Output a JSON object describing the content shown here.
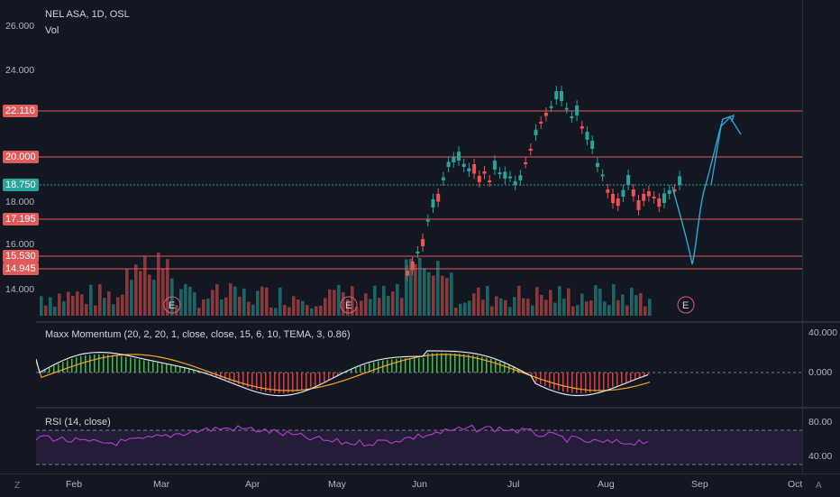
{
  "header": {
    "symbol_line": "NEL ASA, 1D, OSL",
    "volume_label": "Vol"
  },
  "indicators": {
    "momentum_label": "Maxx Momentum (20, 2, 20, 1, close, close, 15, 6, 10, TEMA, 3, 0.86)",
    "rsi_label": "RSI (14, close)"
  },
  "price_axis": {
    "ticks": [
      "26.000",
      "24.000",
      "18.000",
      "16.000",
      "14.000"
    ],
    "tags": [
      {
        "value": "22.110",
        "color": "#e05a5a"
      },
      {
        "value": "20.000",
        "color": "#e05a5a"
      },
      {
        "value": "18.750",
        "color": "#26a69a"
      },
      {
        "value": "17.195",
        "color": "#e05a5a"
      },
      {
        "value": "15.530",
        "color": "#e05a5a"
      },
      {
        "value": "14.945",
        "color": "#e05a5a"
      }
    ]
  },
  "momentum_axis": {
    "ticks": [
      "40.000",
      "0.000"
    ]
  },
  "rsi_axis": {
    "ticks": [
      "80.00",
      "40.00"
    ]
  },
  "time_axis": {
    "labels": [
      "Feb",
      "Mar",
      "Apr",
      "May",
      "Jun",
      "Jul",
      "Aug",
      "Sep",
      "Oct"
    ]
  },
  "earnings_markers": [
    "E",
    "E",
    "E"
  ],
  "corner_buttons": {
    "left": "Z",
    "right": "A"
  },
  "colors": {
    "background": "#131722",
    "up": "#26a69a",
    "down": "#ef5350",
    "level_line": "#e05a5a",
    "drawing": "#2ea9d8",
    "rsi": "#b33fd0"
  }
}
